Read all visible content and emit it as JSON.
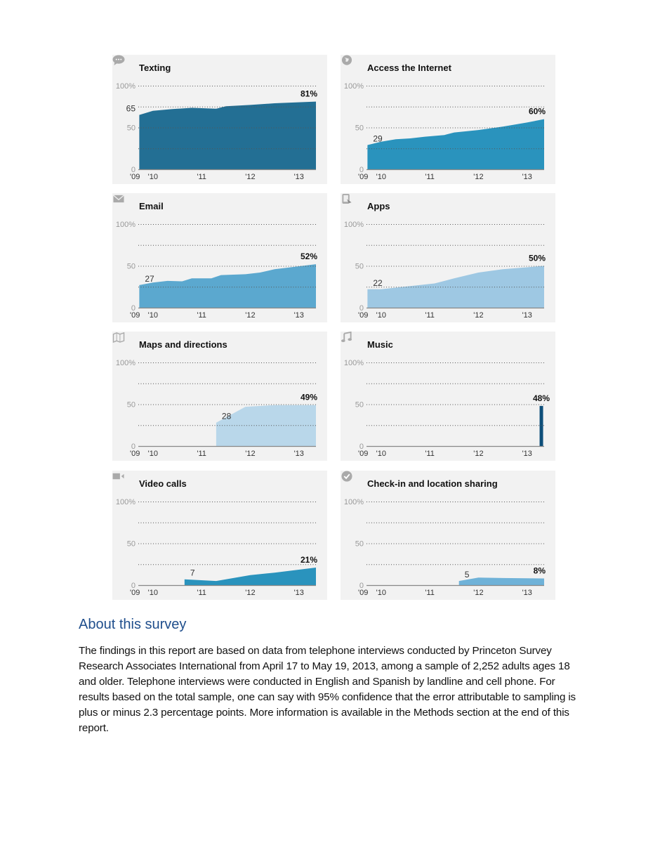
{
  "chart_data": [
    {
      "type": "area",
      "title": "Texting",
      "icon": "speech-bubble-icon",
      "color": "#236f94",
      "start_label": "65",
      "end_label": "81%",
      "x": [
        2009.72,
        2010.0,
        2010.4,
        2010.8,
        2011.3,
        2011.5,
        2012.0,
        2012.5,
        2013.35
      ],
      "values": [
        65,
        70,
        72,
        73.5,
        72.5,
        75.5,
        77,
        79,
        81
      ]
    },
    {
      "type": "area",
      "title": "Access the Internet",
      "icon": "globe-icon",
      "color": "#2a93bd",
      "start_label": "29",
      "end_label": "60%",
      "x": [
        2009.72,
        2010.0,
        2010.3,
        2010.6,
        2010.9,
        2011.3,
        2011.5,
        2012.0,
        2012.5,
        2013.0,
        2013.35
      ],
      "values": [
        29,
        33,
        36,
        37,
        39,
        41,
        44,
        47,
        51,
        56,
        60
      ]
    },
    {
      "type": "area",
      "title": "Email",
      "icon": "envelope-icon",
      "color": "#5ba8cf",
      "start_label": "27",
      "end_label": "52%",
      "x": [
        2009.72,
        2010.0,
        2010.3,
        2010.6,
        2010.8,
        2011.2,
        2011.4,
        2011.9,
        2012.2,
        2012.5,
        2013.35
      ],
      "values": [
        27,
        30,
        32,
        31.5,
        35,
        35,
        39,
        40,
        42,
        46,
        52
      ]
    },
    {
      "type": "area",
      "title": "Apps",
      "icon": "phone-app-icon",
      "color": "#9ec8e3",
      "start_label": "22",
      "end_label": "50%",
      "x": [
        2009.72,
        2010.0,
        2011.1,
        2011.5,
        2012.0,
        2012.5,
        2013.35
      ],
      "values": [
        22,
        22,
        29,
        35,
        42,
        46,
        50
      ]
    },
    {
      "type": "area",
      "title": "Maps and directions",
      "icon": "map-icon",
      "color": "#b9d7ea",
      "start_label": "28",
      "end_label": "49%",
      "x": [
        2011.3,
        2011.9,
        2012.5,
        2013.35
      ],
      "values": [
        28,
        47,
        49,
        49
      ]
    },
    {
      "type": "bar",
      "title": "Music",
      "icon": "music-note-icon",
      "color": "#0e4f7a",
      "start_label": "",
      "end_label": "48%",
      "x": [
        2013.3
      ],
      "values": [
        48
      ]
    },
    {
      "type": "area",
      "title": "Video calls",
      "icon": "video-camera-icon",
      "color": "#2a93bd",
      "start_label": "7",
      "end_label": "21%",
      "x": [
        2010.65,
        2011.3,
        2012.0,
        2012.5,
        2013.35
      ],
      "values": [
        7,
        5,
        12,
        15,
        21
      ]
    },
    {
      "type": "area",
      "title": "Check-in and location sharing",
      "icon": "checkmark-badge-icon",
      "color": "#6fb2d8",
      "start_label": "5",
      "end_label": "8%",
      "x": [
        2011.6,
        2012.0,
        2012.5,
        2013.35
      ],
      "values": [
        5,
        9,
        8.5,
        8
      ]
    }
  ],
  "axes": {
    "ylim": [
      0,
      100
    ],
    "xlim": [
      2009.7,
      2013.35
    ],
    "y_ticks": [
      {
        "v": 0,
        "label": "0"
      },
      {
        "v": 50,
        "label": "50"
      },
      {
        "v": 100,
        "label": "100%"
      }
    ],
    "y_grid": [
      25,
      50,
      75,
      100
    ],
    "x_ticks": [
      {
        "v": 2009.72,
        "label": "'09"
      },
      {
        "v": 2010,
        "label": "'10"
      },
      {
        "v": 2011,
        "label": "'11"
      },
      {
        "v": 2012,
        "label": "'12"
      },
      {
        "v": 2013,
        "label": "'13"
      }
    ]
  },
  "survey": {
    "heading": "About this survey",
    "body": "The findings in this report are based on data from telephone interviews conducted by Princeton Survey Research Associates International from April 17 to May 19, 2013, among a sample of 2,252 adults ages 18 and older.  Telephone interviews were conducted in English and Spanish by landline and cell phone. For results based on the total sample, one can say with 95% confidence that the error attributable to sampling is plus or minus 2.3 percentage points.  More information is available in the Methods section at the end of this report."
  }
}
